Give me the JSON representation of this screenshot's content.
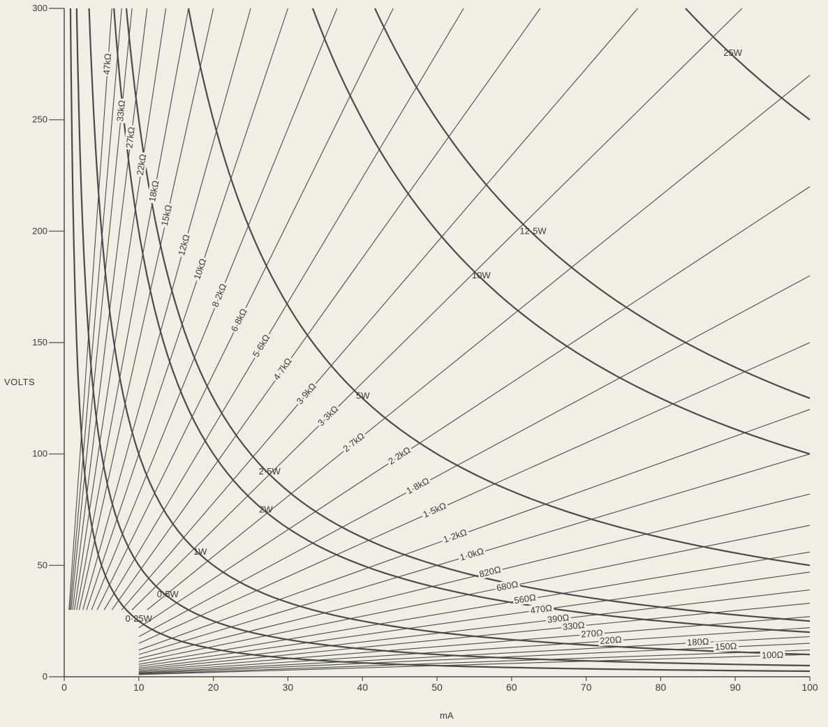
{
  "chart_data": {
    "type": "line",
    "xlabel": "mA",
    "ylabel": "VOLTS",
    "xlim": [
      0,
      100
    ],
    "ylim": [
      0,
      300
    ],
    "x_ticks": [
      "0",
      "10",
      "20",
      "30",
      "40",
      "50",
      "60",
      "70",
      "80",
      "90",
      "100"
    ],
    "y_ticks": [
      "0",
      "50",
      "100",
      "150",
      "200",
      "250",
      "300"
    ],
    "grid": false,
    "legend": "none",
    "colors": {
      "line": "#4a4a48",
      "background": "#efefe6",
      "text": "#3a3a38"
    },
    "resistance_lines": [
      {
        "label": "47kΩ",
        "ohms": 47000,
        "labeled": true
      },
      {
        "label": "",
        "ohms": 39000,
        "labeled": false
      },
      {
        "label": "33kΩ",
        "ohms": 33000,
        "labeled": true
      },
      {
        "label": "27kΩ",
        "ohms": 27000,
        "labeled": true
      },
      {
        "label": "22kΩ",
        "ohms": 22000,
        "labeled": true
      },
      {
        "label": "18kΩ",
        "ohms": 18000,
        "labeled": true
      },
      {
        "label": "15kΩ",
        "ohms": 15000,
        "labeled": true
      },
      {
        "label": "12kΩ",
        "ohms": 12000,
        "labeled": true
      },
      {
        "label": "10kΩ",
        "ohms": 10000,
        "labeled": true
      },
      {
        "label": "8·2kΩ",
        "ohms": 8200,
        "labeled": true
      },
      {
        "label": "6·8kΩ",
        "ohms": 6800,
        "labeled": true
      },
      {
        "label": "5·6kΩ",
        "ohms": 5600,
        "labeled": true
      },
      {
        "label": "4·7kΩ",
        "ohms": 4700,
        "labeled": true
      },
      {
        "label": "3·9kΩ",
        "ohms": 3900,
        "labeled": true
      },
      {
        "label": "3·3kΩ",
        "ohms": 3300,
        "labeled": true
      },
      {
        "label": "2·7kΩ",
        "ohms": 2700,
        "labeled": true
      },
      {
        "label": "2·2kΩ",
        "ohms": 2200,
        "labeled": true
      },
      {
        "label": "1·8kΩ",
        "ohms": 1800,
        "labeled": true
      },
      {
        "label": "1·5kΩ",
        "ohms": 1500,
        "labeled": true
      },
      {
        "label": "1·2kΩ",
        "ohms": 1200,
        "labeled": true
      },
      {
        "label": "1·0kΩ",
        "ohms": 1000,
        "labeled": true
      },
      {
        "label": "820Ω",
        "ohms": 820,
        "labeled": true
      },
      {
        "label": "680Ω",
        "ohms": 680,
        "labeled": true
      },
      {
        "label": "560Ω",
        "ohms": 560,
        "labeled": true
      },
      {
        "label": "470Ω",
        "ohms": 470,
        "labeled": true
      },
      {
        "label": "390Ω",
        "ohms": 390,
        "labeled": true
      },
      {
        "label": "330Ω",
        "ohms": 330,
        "labeled": true
      },
      {
        "label": "270Ω",
        "ohms": 270,
        "labeled": true
      },
      {
        "label": "220Ω",
        "ohms": 220,
        "labeled": true
      },
      {
        "label": "180Ω",
        "ohms": 180,
        "labeled": true
      },
      {
        "label": "150Ω",
        "ohms": 150,
        "labeled": true
      },
      {
        "label": "",
        "ohms": 120,
        "labeled": false
      },
      {
        "label": "100Ω",
        "ohms": 100,
        "labeled": true
      }
    ],
    "power_curves": [
      {
        "label": "0·25W",
        "watts": 0.25
      },
      {
        "label": "0·5W",
        "watts": 0.5
      },
      {
        "label": "1W",
        "watts": 1
      },
      {
        "label": "2W",
        "watts": 2
      },
      {
        "label": "2·5W",
        "watts": 2.5
      },
      {
        "label": "5W",
        "watts": 5
      },
      {
        "label": "10W",
        "watts": 10
      },
      {
        "label": "12·5W",
        "watts": 12.5
      },
      {
        "label": "25W",
        "watts": 25
      }
    ]
  }
}
